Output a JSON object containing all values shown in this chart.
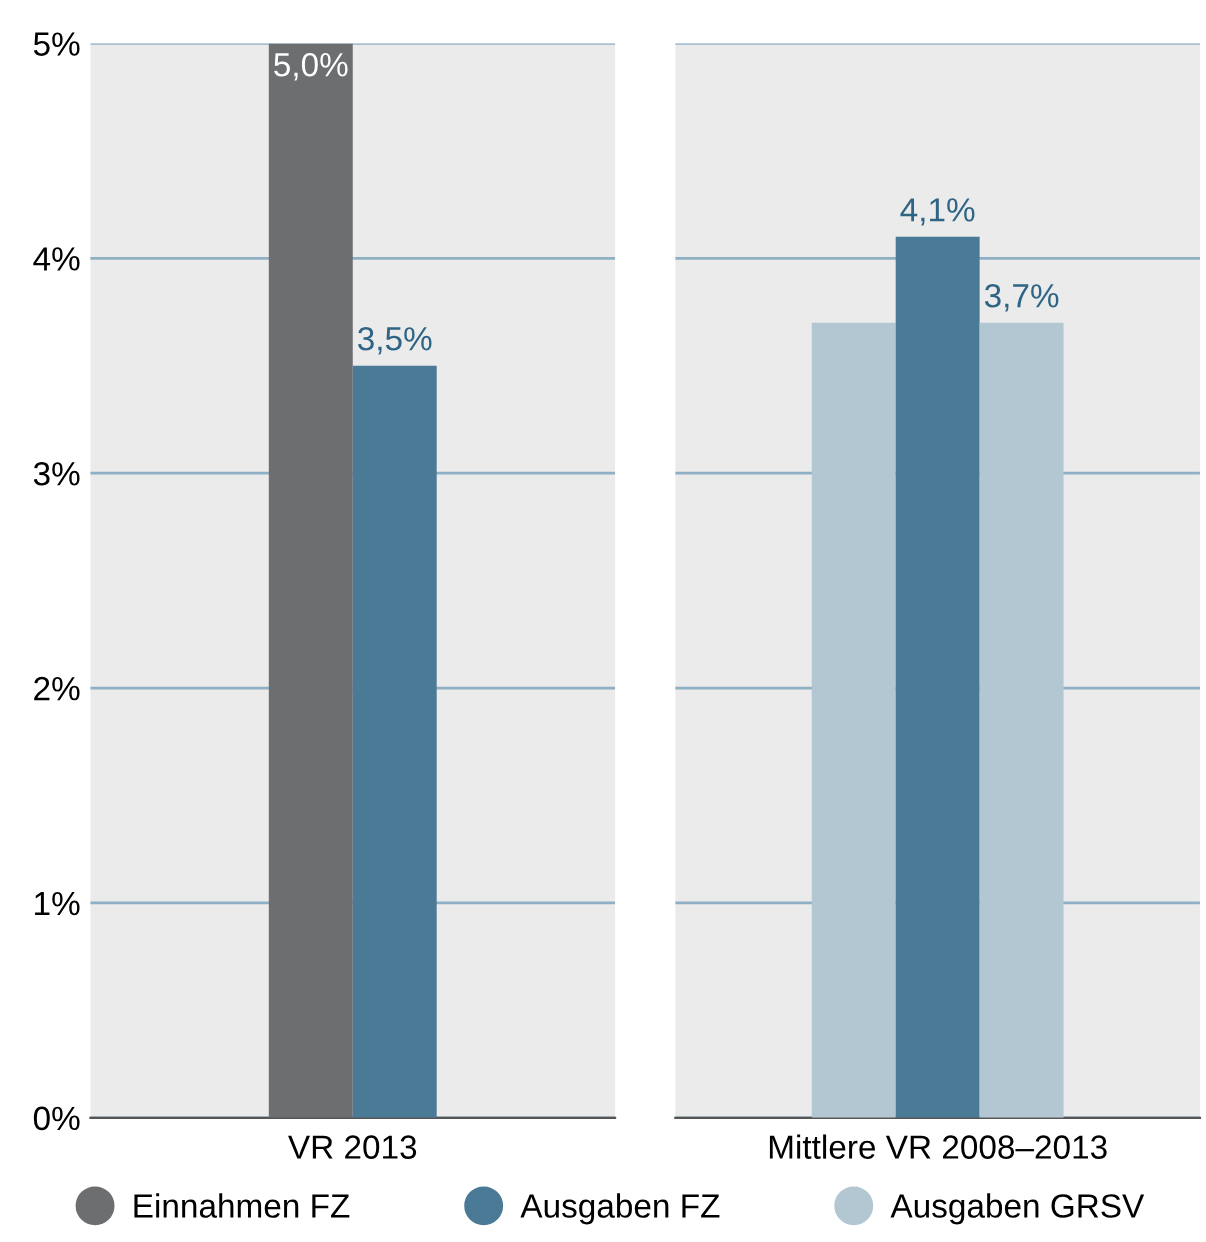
{
  "chart_data": [
    {
      "type": "bar",
      "categories": [
        "VR 2013"
      ],
      "series": [
        {
          "name": "Einnahmen FZ",
          "color": "#6d6e70",
          "values": [
            5.0
          ],
          "value_labels": [
            "5,0%"
          ]
        },
        {
          "name": "Ausgaben FZ",
          "color": "#4a7a96",
          "values": [
            3.5
          ],
          "value_labels": [
            "3,5%"
          ]
        }
      ],
      "ylim": [
        0,
        5
      ],
      "yticks": [
        {
          "value": 0,
          "label": "0%"
        },
        {
          "value": 1,
          "label": "1%"
        },
        {
          "value": 2,
          "label": "2%"
        },
        {
          "value": 3,
          "label": "3%"
        },
        {
          "value": 4,
          "label": "4%"
        },
        {
          "value": 5,
          "label": "5%"
        }
      ],
      "grid": "y",
      "legend": "bottom"
    },
    {
      "type": "bar",
      "categories": [
        "Mittlere VR 2008–2013"
      ],
      "series": [
        {
          "color": "#b3c7d3",
          "values": [
            3.7
          ],
          "value_labels": [
            null
          ]
        },
        {
          "color": "#4a7a96",
          "values": [
            4.1
          ],
          "value_labels": [
            "4,1%"
          ]
        },
        {
          "name": "Ausgaben GRSV",
          "color": "#b3c7d3",
          "values": [
            3.7
          ],
          "value_labels": [
            "3,7%"
          ]
        }
      ],
      "ylim": [
        0,
        5
      ],
      "yticks": [
        {
          "value": 0,
          "label": null
        },
        {
          "value": 1,
          "label": null
        },
        {
          "value": 2,
          "label": null
        },
        {
          "value": 3,
          "label": null
        },
        {
          "value": 4,
          "label": null
        },
        {
          "value": 5,
          "label": null
        }
      ],
      "grid": "y",
      "tick_labels": "x",
      "legend": "bottom"
    }
  ]
}
